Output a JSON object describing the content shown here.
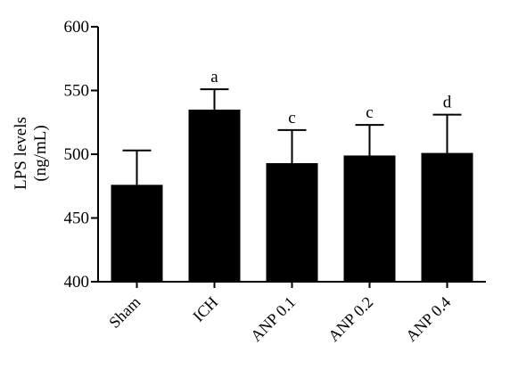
{
  "chart_data": {
    "type": "bar",
    "ylabel_lines": [
      "LPS levels",
      "(ng/mL)"
    ],
    "ylim": [
      400,
      600
    ],
    "yticks": [
      400,
      450,
      500,
      550,
      600
    ],
    "categories": [
      "Sham",
      "ICH",
      "ANP 0.1",
      "ANP 0.2",
      "ANP 0.4"
    ],
    "values": [
      476,
      535,
      493,
      499,
      501
    ],
    "errors": [
      27,
      16,
      26,
      24,
      30
    ],
    "significance": [
      "",
      "a",
      "c",
      "c",
      "d"
    ],
    "bar_color": "#000000",
    "grid": false,
    "legend": "none"
  }
}
